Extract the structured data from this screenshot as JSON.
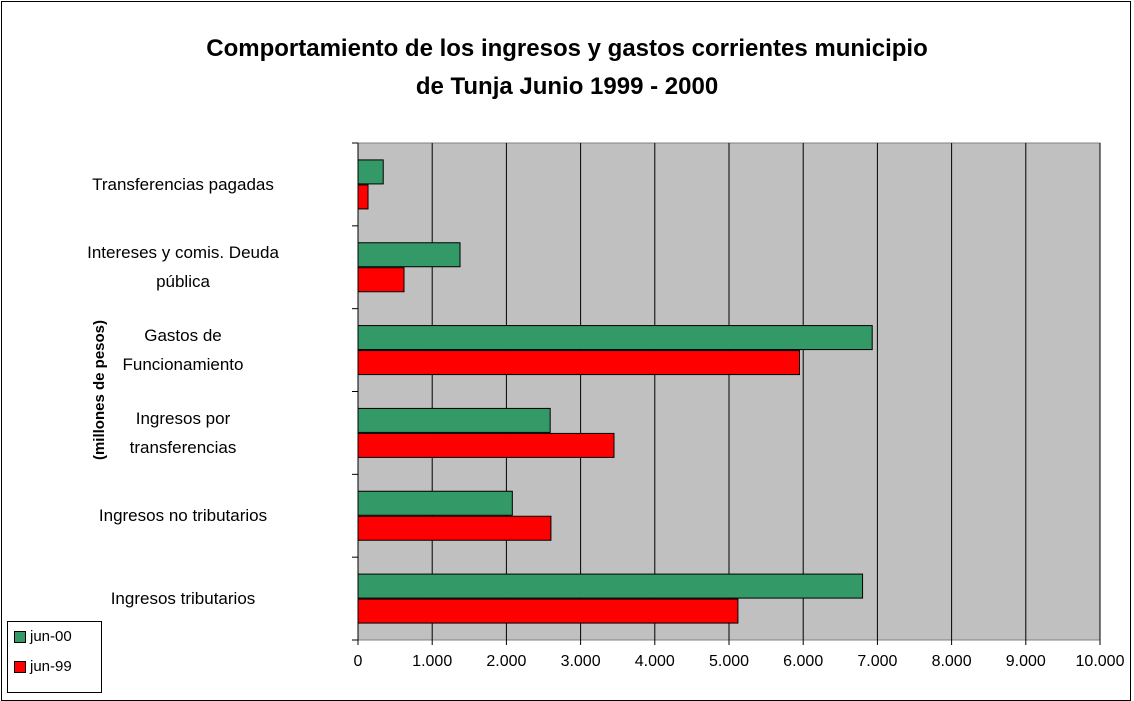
{
  "chart_data": {
    "type": "bar",
    "orientation": "horizontal",
    "title": "Comportamiento de los ingresos y gastos corrientes municipio\nde Tunja  Junio 1999 - 2000",
    "y_label": "(millones de pesos)",
    "categories": [
      "Transferencias pagadas",
      "Intereses y comis. Deuda\npública",
      "Gastos de\nFuncionamiento",
      "Ingresos por\ntransferencias",
      "Ingresos no tributarios",
      "Ingresos tributarios"
    ],
    "series": [
      {
        "name": "jun-00",
        "color": "#339966",
        "values": [
          340,
          1375,
          6930,
          2590,
          2080,
          6800
        ]
      },
      {
        "name": "jun-99",
        "color": "#ff0000",
        "values": [
          135,
          620,
          5950,
          3450,
          2600,
          5120
        ]
      }
    ],
    "xlim": [
      0,
      10000
    ],
    "xticks": [
      0,
      {
        "value": 1000,
        "label": "1.000"
      },
      {
        "value": 2000,
        "label": "2.000"
      },
      {
        "value": 3000,
        "label": "3.000"
      },
      {
        "value": 4000,
        "label": "4.000"
      },
      {
        "value": 5000,
        "label": "5.000"
      },
      {
        "value": 6000,
        "label": "6.000"
      },
      {
        "value": 7000,
        "label": "7.000"
      },
      {
        "value": 8000,
        "label": "8.000"
      },
      {
        "value": 9000,
        "label": "9.000"
      },
      {
        "value": 10000,
        "label": "10.000"
      }
    ],
    "grid": true,
    "legend": "bottom-left",
    "plot_background": "#c0c0c0"
  }
}
